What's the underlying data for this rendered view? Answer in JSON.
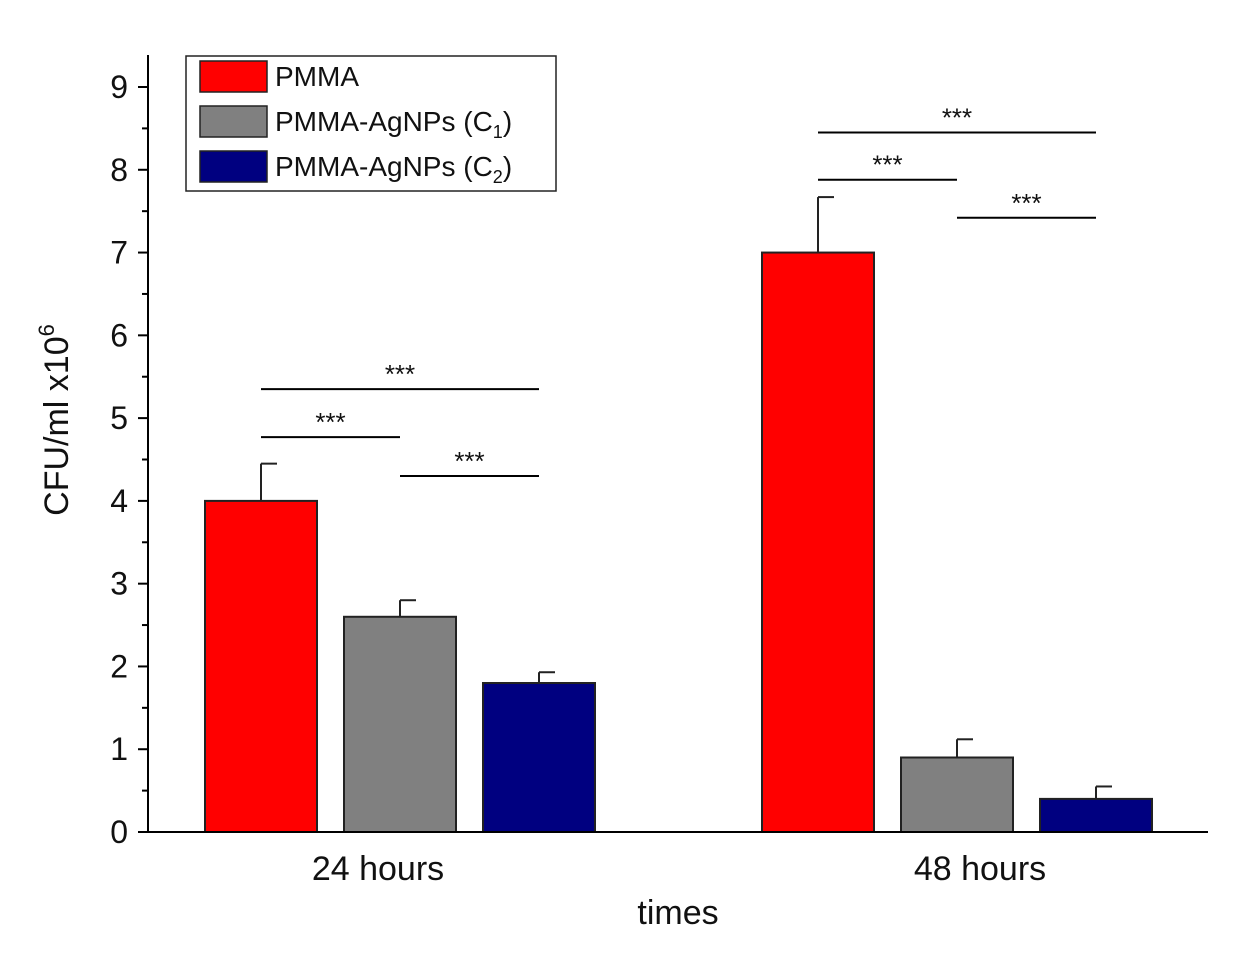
{
  "chart_data": {
    "type": "bar",
    "title": "",
    "xlabel": "times",
    "ylabel": "CFU/ml x10",
    "ylabel_exponent": "6",
    "ylim": [
      0,
      9.3
    ],
    "yticks": [
      0,
      1,
      2,
      3,
      4,
      5,
      6,
      7,
      8,
      9
    ],
    "categories": [
      "24 hours",
      "48 hours"
    ],
    "series": [
      {
        "name": "PMMA",
        "legend_main": "PMMA",
        "legend_sub": "",
        "legend_tail": "",
        "color": "#ff0000",
        "values": [
          4.0,
          7.0
        ],
        "errors": [
          0.45,
          0.67
        ]
      },
      {
        "name": "PMMA-AgNPs (C1)",
        "legend_main": "PMMA-AgNPs (C",
        "legend_sub": "1",
        "legend_tail": ")",
        "color": "#808080",
        "values": [
          2.6,
          0.9
        ],
        "errors": [
          0.2,
          0.22
        ]
      },
      {
        "name": "PMMA-AgNPs (C2)",
        "legend_main": "PMMA-AgNPs (C",
        "legend_sub": "2",
        "legend_tail": ")",
        "color": "#000080",
        "values": [
          1.8,
          0.4
        ],
        "errors": [
          0.13,
          0.15
        ]
      }
    ],
    "legend_position": "top-left",
    "significance": [
      {
        "category": 0,
        "from": 0,
        "to": 2,
        "y": 5.35,
        "label": "***"
      },
      {
        "category": 0,
        "from": 0,
        "to": 1,
        "y": 4.77,
        "label": "***"
      },
      {
        "category": 0,
        "from": 1,
        "to": 2,
        "y": 4.3,
        "label": "***"
      },
      {
        "category": 1,
        "from": 0,
        "to": 2,
        "y": 8.45,
        "label": "***"
      },
      {
        "category": 1,
        "from": 0,
        "to": 1,
        "y": 7.88,
        "label": "***"
      },
      {
        "category": 1,
        "from": 1,
        "to": 2,
        "y": 7.42,
        "label": "***"
      }
    ]
  }
}
